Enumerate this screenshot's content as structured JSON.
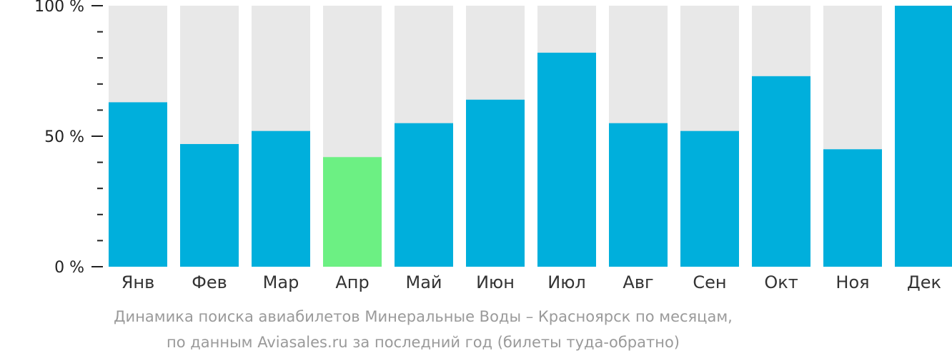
{
  "chart_data": {
    "type": "bar",
    "categories": [
      "Янв",
      "Фев",
      "Мар",
      "Апр",
      "Май",
      "Июн",
      "Июл",
      "Авг",
      "Сен",
      "Окт",
      "Ноя",
      "Дек"
    ],
    "values": [
      63,
      47,
      52,
      42,
      55,
      64,
      82,
      55,
      52,
      73,
      45,
      100
    ],
    "ylim": [
      0,
      100
    ],
    "yticks": [
      {
        "value": 0,
        "label": "0 %"
      },
      {
        "value": 50,
        "label": "50 %"
      },
      {
        "value": 100,
        "label": "100 %"
      }
    ],
    "minor_tick_step": 10,
    "highlight_index": 3,
    "colors": {
      "bar": "#00afdc",
      "highlight": "#6cf083",
      "background_bar": "#e8e8e8",
      "axis": "#222222"
    },
    "caption": [
      "Динамика поиска авиабилетов Минеральные Воды – Красноярск по месяцам,",
      "по данным Aviasales.ru за последний год (билеты туда-обратно)"
    ]
  }
}
